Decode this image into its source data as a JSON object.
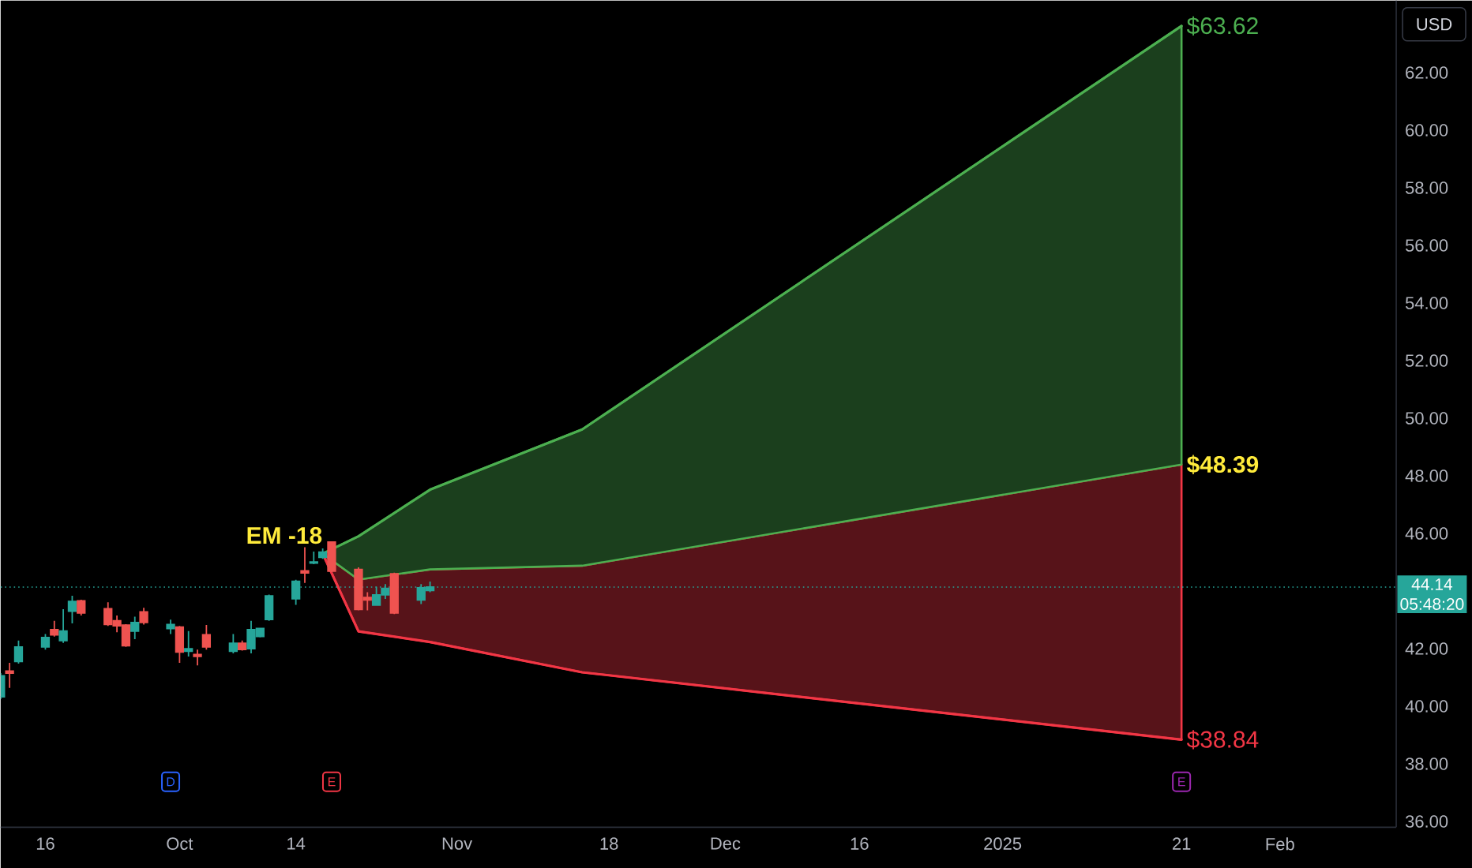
{
  "chart_data": {
    "type": "candlestick",
    "ylabel": "USD",
    "x": [
      "2024-09-11",
      "2024-09-12",
      "2024-09-13",
      "2024-09-16",
      "2024-09-17",
      "2024-09-18",
      "2024-09-19",
      "2024-09-20",
      "2024-09-23",
      "2024-09-24",
      "2024-09-25",
      "2024-09-26",
      "2024-09-27",
      "2024-09-30",
      "2024-10-01",
      "2024-10-02",
      "2024-10-03",
      "2024-10-04",
      "2024-10-07",
      "2024-10-08",
      "2024-10-09",
      "2024-10-10",
      "2024-10-11",
      "2024-10-14",
      "2024-10-15",
      "2024-10-16",
      "2024-10-17",
      "2024-10-18",
      "2024-10-21",
      "2024-10-22",
      "2024-10-23",
      "2024-10-24",
      "2024-10-25",
      "2024-10-28",
      "2024-10-29"
    ],
    "ohlc": [
      [
        40.33,
        41.15,
        40.25,
        41.06
      ],
      [
        41.22,
        41.51,
        40.64,
        41.15
      ],
      [
        41.55,
        42.28,
        41.48,
        42.06
      ],
      [
        42.06,
        42.51,
        41.97,
        42.39
      ],
      [
        42.66,
        42.97,
        42.42,
        42.48
      ],
      [
        42.28,
        43.37,
        42.2,
        42.61
      ],
      [
        43.3,
        43.84,
        42.88,
        43.64
      ],
      [
        43.66,
        43.7,
        43.15,
        43.24
      ],
      [
        43.39,
        43.61,
        42.79,
        42.84
      ],
      [
        42.97,
        43.15,
        42.57,
        42.79
      ],
      [
        42.82,
        42.85,
        42.06,
        42.1
      ],
      [
        42.61,
        43.11,
        42.33,
        42.91
      ],
      [
        43.28,
        43.42,
        42.84,
        42.91
      ],
      [
        42.7,
        43.01,
        42.51,
        42.84
      ],
      [
        42.75,
        42.79,
        41.51,
        41.88
      ],
      [
        41.91,
        42.61,
        41.73,
        42.0
      ],
      [
        41.8,
        41.97,
        41.42,
        41.73
      ],
      [
        42.48,
        42.82,
        41.97,
        42.06
      ],
      [
        41.91,
        42.51,
        41.84,
        42.19
      ],
      [
        42.19,
        42.28,
        41.93,
        41.97
      ],
      [
        42.0,
        42.97,
        41.84,
        42.66
      ],
      [
        42.42,
        42.73,
        42.39,
        42.7
      ],
      [
        43.01,
        43.88,
        42.97,
        43.83
      ],
      [
        43.73,
        44.39,
        43.52,
        44.34
      ],
      [
        44.7,
        45.52,
        44.28,
        44.63
      ],
      [
        44.97,
        45.37,
        44.93,
        45.01
      ],
      [
        45.17,
        45.48,
        45.12,
        45.35
      ],
      [
        45.7,
        45.73,
        44.66,
        44.69
      ],
      [
        44.75,
        44.82,
        43.33,
        43.36
      ],
      [
        43.78,
        43.96,
        43.33,
        43.69
      ],
      [
        43.51,
        44.15,
        43.51,
        43.87
      ],
      [
        43.87,
        44.24,
        43.73,
        44.09
      ],
      [
        44.6,
        44.64,
        43.2,
        43.24
      ],
      [
        43.69,
        44.24,
        43.55,
        44.11
      ],
      [
        44.02,
        44.33,
        43.96,
        44.14
      ]
    ],
    "colors": [
      "#26a69a",
      "#ef5350",
      "#26a69a",
      "#26a69a",
      "#ef5350",
      "#26a69a",
      "#26a69a",
      "#ef5350",
      "#ef5350",
      "#ef5350",
      "#ef5350",
      "#26a69a",
      "#ef5350",
      "#26a69a",
      "#ef5350",
      "#26a69a",
      "#ef5350",
      "#ef5350",
      "#26a69a",
      "#ef5350",
      "#26a69a",
      "#26a69a",
      "#26a69a",
      "#26a69a",
      "#ef5350",
      "#26a69a",
      "#26a69a",
      "#ef5350",
      "#ef5350",
      "#ef5350",
      "#26a69a",
      "#26a69a",
      "#ef5350",
      "#26a69a",
      "#26a69a"
    ],
    "series": [
      {
        "type": "line",
        "color": "#4caf50",
        "x": [
          "2024-10-17",
          "2024-10-21",
          "2024-10-29",
          "2024-11-15",
          "2025-01-21"
        ],
        "values": [
          45.3,
          45.9,
          47.52,
          49.61,
          63.62
        ],
        "lower": [
          45.3,
          44.4,
          44.75,
          44.88,
          48.39
        ],
        "upper": [
          45.3,
          45.9,
          47.52,
          49.61,
          63.62
        ],
        "value_labels": [
          null,
          null,
          null,
          null,
          "$63.62"
        ]
      },
      {
        "type": "line",
        "color": "#f23645",
        "x": [
          "2024-10-17",
          "2024-10-21",
          "2024-10-29",
          "2024-11-15",
          "2025-01-21"
        ],
        "values": [
          45.3,
          42.6,
          42.23,
          41.18,
          38.84
        ],
        "lower": [
          45.3,
          42.6,
          42.23,
          41.18,
          38.84
        ],
        "upper": [
          45.3,
          44.4,
          44.75,
          44.88,
          48.39
        ],
        "value_labels": [
          null,
          null,
          null,
          null,
          "$38.84"
        ]
      }
    ],
    "annotations": [
      {
        "text": "EM -18",
        "x": "2024-10-17",
        "y": 45.3
      },
      {
        "text": "$48.39",
        "x": "2025-01-21",
        "y": 48.39
      },
      {
        "text": "D",
        "x": "2024-09-30"
      },
      {
        "text": "E",
        "x": "2024-10-18"
      },
      {
        "text": "E",
        "x": "2025-01-21"
      },
      "05:48:20"
    ],
    "ref_lines": [
      {
        "axis": "y",
        "value": 44.14,
        "label": "44.14",
        "color": "#26a69a",
        "line_style": "dotted"
      }
    ],
    "xlim": [
      "2024-09-11",
      "2025-02-14"
    ],
    "ylim": [
      35.8,
      64.5
    ],
    "xticks": [
      {
        "value": "2024-09-16",
        "label": "16"
      },
      {
        "value": "2024-10",
        "label": "Oct"
      },
      {
        "value": "2024-10-14",
        "label": "14"
      },
      {
        "value": "2024-11",
        "label": "Nov"
      },
      {
        "value": "2024-11-18",
        "label": "18"
      },
      {
        "value": "2024-12",
        "label": "Dec"
      },
      {
        "value": "2024-12-16",
        "label": "16"
      },
      {
        "value": "2025",
        "label": "2025"
      },
      {
        "value": "2025-01-21",
        "label": "21"
      },
      {
        "value": "2025-02",
        "label": "Feb"
      }
    ],
    "yticks": [
      {
        "value": 36,
        "label": "36.00"
      },
      {
        "value": 38,
        "label": "38.00"
      },
      {
        "value": 40,
        "label": "40.00"
      },
      {
        "value": 42,
        "label": "42.00"
      },
      {
        "value": 46,
        "label": "46.00"
      },
      {
        "value": 48,
        "label": "48.00"
      },
      {
        "value": 50,
        "label": "50.00"
      },
      {
        "value": 52,
        "label": "52.00"
      },
      {
        "value": 54,
        "label": "54.00"
      },
      {
        "value": 56,
        "label": "56.00"
      },
      {
        "value": 58,
        "label": "58.00"
      },
      {
        "value": 60,
        "label": "60.00"
      },
      {
        "value": 62,
        "label": "62.00"
      }
    ]
  }
}
